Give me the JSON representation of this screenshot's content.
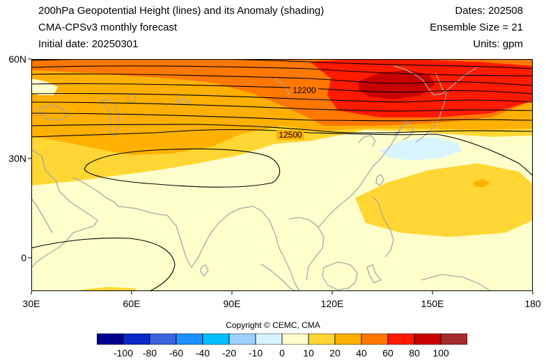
{
  "header": {
    "title_line1": "200hPa Geopotential Height (lines) and its Anomaly (shading)",
    "title_line2": "CMA-CPSv3 monthly forecast",
    "title_line3": "Initial date: 20250301",
    "dates": "Dates: 202508",
    "ensemble": "Ensemble Size = 21",
    "units": "Units: gpm"
  },
  "axes": {
    "y_labels": [
      "60N",
      "30N",
      "0"
    ],
    "x_labels": [
      "30E",
      "60E",
      "90E",
      "120E",
      "150E",
      "180"
    ],
    "lat_range": [
      -10,
      60
    ],
    "lon_range": [
      30,
      180
    ]
  },
  "contour_labels": [
    "12200",
    "12500"
  ],
  "copyright": "Copyright © CEMC, CMA",
  "colorbar": {
    "labels": [
      "-100",
      "-80",
      "-60",
      "-40",
      "-20",
      "-10",
      "0",
      "10",
      "20",
      "40",
      "60",
      "80",
      "100"
    ],
    "colors": [
      "#00008c",
      "#0a28c8",
      "#3c64dc",
      "#1e90ff",
      "#00bfff",
      "#a0d0ff",
      "#d8f4ff",
      "#ffffcc",
      "#ffd633",
      "#ffb000",
      "#ff7800",
      "#ff1a00",
      "#c80000",
      "#a52a2a"
    ]
  },
  "colors": {
    "coast": "#a8a8a8",
    "contour": "#000000"
  }
}
